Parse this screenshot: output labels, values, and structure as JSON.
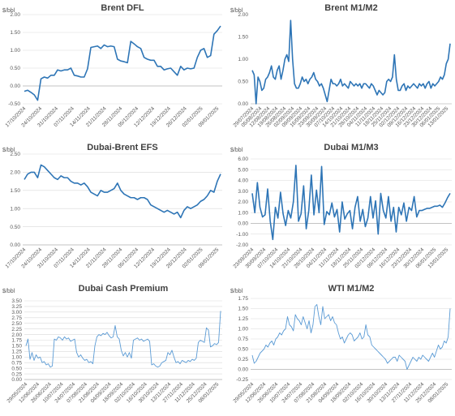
{
  "chart_data": [
    {
      "type": "line",
      "title": "Brent DFL",
      "unit": "$/bbl",
      "color": "#2e75b6",
      "ylim": [
        -0.5,
        2.0
      ],
      "yticks": [
        "-0.50",
        "0.00",
        "0.50",
        "1.00",
        "1.50",
        "2.00"
      ],
      "grid": true,
      "x_tick_labels": [
        "17/10/2024",
        "24/10/2024",
        "31/10/2024",
        "07/11/2024",
        "14/11/2024",
        "21/11/2024",
        "28/11/2024",
        "05/12/2024",
        "12/12/2024",
        "19/12/2024",
        "26/12/2024",
        "02/01/2025",
        "09/01/2025"
      ],
      "series": [
        {
          "values": [
            -0.15,
            -0.12,
            -0.18,
            -0.25,
            -0.4,
            0.2,
            0.25,
            0.22,
            0.3,
            0.3,
            0.45,
            0.42,
            0.45,
            0.45,
            0.5,
            0.3,
            0.28,
            0.25,
            0.25,
            0.48,
            1.08,
            1.1,
            1.12,
            1.05,
            1.15,
            1.1,
            1.12,
            1.1,
            0.75,
            0.7,
            0.68,
            0.65,
            1.25,
            1.18,
            1.1,
            1.05,
            0.8,
            0.75,
            0.72,
            0.72,
            0.55,
            0.55,
            0.45,
            0.48,
            0.5,
            0.4,
            0.3,
            0.55,
            0.45,
            0.5,
            0.48,
            0.5,
            0.8,
            1.0,
            1.05,
            0.8,
            0.85,
            1.45,
            1.55,
            1.68
          ]
        }
      ]
    },
    {
      "type": "line",
      "title": "Brent M1/M2",
      "unit": "$/bbl",
      "color": "#2e75b6",
      "ylim": [
        0,
        2.0
      ],
      "yticks": [
        "-0.50",
        "0.00",
        "0.50",
        "1.00",
        "1.50",
        "2.00"
      ],
      "grid": false,
      "x_tick_labels": [
        "29/07/2024",
        "05/08/2024",
        "12/08/2024",
        "19/08/2024",
        "26/08/2024",
        "02/09/2024",
        "09/09/2024",
        "16/09/2024",
        "23/09/2024",
        "30/09/2024",
        "07/10/2024",
        "14/10/2024",
        "21/10/2024",
        "28/10/2024",
        "04/11/2024",
        "11/11/2024",
        "18/11/2024",
        "25/11/2024",
        "02/12/2024",
        "09/12/2024",
        "16/12/2024",
        "23/12/2024",
        "30/12/2024",
        "06/01/2025",
        "13/01/2025"
      ],
      "series": [
        {
          "values": [
            0.75,
            0.65,
            -0.1,
            0.6,
            0.5,
            0.3,
            0.35,
            0.55,
            0.6,
            0.7,
            0.85,
            0.6,
            0.55,
            0.75,
            0.85,
            0.55,
            0.75,
            1.0,
            1.1,
            0.95,
            1.87,
            1.0,
            0.45,
            0.35,
            0.35,
            0.45,
            0.6,
            0.5,
            0.55,
            0.45,
            0.55,
            0.6,
            0.7,
            0.55,
            0.5,
            0.4,
            0.45,
            0.35,
            0.2,
            0.05,
            0.3,
            0.55,
            0.45,
            0.45,
            0.4,
            0.45,
            0.55,
            0.4,
            0.45,
            0.4,
            0.35,
            0.5,
            0.45,
            0.4,
            0.45,
            0.4,
            0.45,
            0.35,
            0.45,
            0.45,
            0.4,
            0.35,
            0.45,
            0.4,
            0.3,
            0.2,
            0.3,
            0.25,
            0.2,
            0.25,
            0.5,
            0.55,
            0.5,
            0.6,
            1.1,
            0.55,
            0.3,
            0.3,
            0.4,
            0.45,
            0.3,
            0.4,
            0.35,
            0.4,
            0.45,
            0.4,
            0.35,
            0.45,
            0.4,
            0.45,
            0.35,
            0.45,
            0.5,
            0.35,
            0.45,
            0.4,
            0.45,
            0.5,
            0.6,
            0.55,
            0.65,
            0.9,
            1.0,
            1.35
          ]
        }
      ]
    },
    {
      "type": "line",
      "title": "Dubai-Brent EFS",
      "unit": "$/bbl",
      "color": "#2e75b6",
      "ylim": [
        0,
        2.5
      ],
      "yticks": [
        "0.00",
        "0.50",
        "1.00",
        "1.50",
        "2.00",
        "2.50"
      ],
      "grid": true,
      "x_tick_labels": [
        "17/10/2024",
        "24/10/2024",
        "31/10/2024",
        "07/11/2024",
        "14/11/2024",
        "21/11/2024",
        "28/11/2024",
        "05/12/2024",
        "12/12/2024",
        "19/12/2024",
        "26/12/2024",
        "02/01/2025",
        "09/01/2025"
      ],
      "series": [
        {
          "values": [
            1.8,
            1.95,
            2.0,
            2.0,
            1.85,
            2.2,
            2.15,
            2.05,
            1.95,
            1.85,
            1.8,
            1.9,
            1.85,
            1.85,
            1.75,
            1.7,
            1.7,
            1.65,
            1.7,
            1.6,
            1.45,
            1.4,
            1.35,
            1.5,
            1.45,
            1.45,
            1.5,
            1.55,
            1.7,
            1.5,
            1.4,
            1.35,
            1.3,
            1.3,
            1.25,
            1.3,
            1.3,
            1.25,
            1.1,
            1.05,
            1.0,
            0.95,
            0.9,
            0.95,
            0.9,
            0.85,
            0.9,
            0.75,
            0.95,
            1.05,
            1.0,
            1.05,
            1.1,
            1.2,
            1.25,
            1.35,
            1.5,
            1.45,
            1.75,
            1.95
          ]
        }
      ]
    },
    {
      "type": "line",
      "title": "Dubai M1/M3",
      "unit": "$/bbl",
      "color": "#2e75b6",
      "ylim": [
        -2.0,
        6.0
      ],
      "yticks": [
        "-2.00",
        "-1.00",
        "0.00",
        "1.00",
        "2.00",
        "3.00",
        "4.00",
        "5.00",
        "6.00"
      ],
      "grid": true,
      "x_tick_labels": [
        "23/09/2024",
        "30/09/2024",
        "07/10/2024",
        "14/10/2024",
        "21/10/2024",
        "28/10/2024",
        "04/11/2024",
        "11/11/2024",
        "18/11/2024",
        "25/11/2024",
        "02/12/2024",
        "09/12/2024",
        "16/12/2024",
        "23/12/2024",
        "30/12/2024",
        "06/01/2025",
        "13/01/2025"
      ],
      "series": [
        {
          "values": [
            2.8,
            1.0,
            3.8,
            1.5,
            0.6,
            0.8,
            3.2,
            0.2,
            -1.5,
            1.5,
            0.5,
            2.9,
            0.9,
            -0.2,
            1.2,
            0.5,
            2.0,
            5.4,
            0.2,
            0.9,
            3.5,
            -0.5,
            1.2,
            4.5,
            0.8,
            3.1,
            1.0,
            5.3,
            -0.1,
            1.1,
            0.8,
            1.9,
            0.6,
            1.3,
            -0.8,
            2.0,
            0.4,
            0.9,
            1.2,
            -0.5,
            1.5,
            2.5,
            0.2,
            1.3,
            -0.3,
            0.5,
            2.5,
            0.5,
            2.1,
            -1.0,
            2.8,
            1.2,
            0.5,
            2.5,
            0.2,
            1.5,
            -0.8,
            1.5,
            0.8,
            1.9,
            0.2,
            1.5,
            1.2,
            2.5,
            0.6,
            1.2,
            1.2,
            1.3,
            1.4,
            1.4,
            1.5,
            1.6,
            1.6,
            1.7,
            1.5,
            1.9,
            2.4,
            2.8
          ]
        }
      ]
    },
    {
      "type": "line",
      "title": "Dubai Cash Premium",
      "unit": "$/bbl",
      "color": "#5b9bd5",
      "ylim": [
        0,
        3.5
      ],
      "yticks": [
        "0.00",
        "0.25",
        "0.50",
        "0.75",
        "1.00",
        "1.25",
        "1.50",
        "1.75",
        "2.00",
        "2.25",
        "2.50",
        "2.75",
        "3.00",
        "3.25",
        "3.50"
      ],
      "grid": true,
      "x_tick_labels": [
        "29/05/2024",
        "12/06/2024",
        "26/06/2024",
        "10/07/2024",
        "24/07/2024",
        "07/08/2024",
        "21/08/2024",
        "04/09/2024",
        "18/09/2024",
        "02/10/2024",
        "16/10/2024",
        "30/10/2024",
        "13/11/2024",
        "27/11/2024",
        "11/12/2024",
        "25/12/2024",
        "08/01/2025"
      ],
      "series": [
        {
          "values": [
            1.5,
            1.8,
            0.9,
            1.2,
            0.85,
            1.1,
            0.95,
            1.0,
            0.75,
            0.8,
            0.65,
            0.7,
            0.55,
            0.6,
            1.8,
            1.75,
            1.9,
            1.85,
            1.75,
            1.9,
            1.8,
            1.85,
            1.7,
            1.75,
            1.8,
            1.2,
            1.0,
            1.1,
            0.95,
            0.85,
            0.9,
            0.75,
            0.8,
            0.7,
            1.5,
            1.9,
            2.0,
            1.95,
            2.05,
            2.0,
            2.1,
            1.95,
            1.85,
            1.9,
            2.4,
            1.9,
            1.8,
            1.3,
            1.05,
            1.2,
            1.0,
            1.2,
            0.95,
            1.75,
            1.8,
            1.85,
            1.75,
            1.8,
            1.7,
            1.75,
            1.8,
            1.7,
            0.65,
            0.7,
            0.6,
            0.55,
            0.6,
            0.75,
            0.8,
            0.85,
            1.2,
            1.1,
            1.3,
            1.0,
            0.75,
            0.8,
            0.7,
            0.85,
            0.8,
            0.75,
            0.85,
            0.8,
            0.9,
            0.85,
            0.95,
            1.65,
            1.75,
            1.7,
            1.65,
            2.3,
            2.2,
            1.45,
            1.5,
            1.6,
            1.55,
            1.65,
            3.05
          ]
        }
      ]
    },
    {
      "type": "line",
      "title": "WTI M1/M2",
      "unit": "$/bbl",
      "color": "#5b9bd5",
      "ylim": [
        -0.25,
        1.75
      ],
      "yticks": [
        "-0.25",
        "0.00",
        "0.25",
        "0.50",
        "0.75",
        "1.00",
        "1.25",
        "1.50",
        "1.75"
      ],
      "grid": true,
      "x_tick_labels": [
        "29/05/2024",
        "12/06/2024",
        "26/06/2024",
        "10/07/2024",
        "24/07/2024",
        "07/08/2024",
        "21/08/2024",
        "04/09/2024",
        "18/09/2024",
        "02/10/2024",
        "16/10/2024",
        "30/10/2024",
        "13/11/2024",
        "27/11/2024",
        "11/12/2024",
        "25/12/2024",
        "08/01/2025"
      ],
      "series": [
        {
          "values": [
            0.35,
            0.15,
            0.2,
            0.3,
            0.4,
            0.45,
            0.5,
            0.6,
            0.55,
            0.65,
            0.7,
            0.6,
            0.75,
            0.8,
            0.9,
            0.85,
            0.95,
            1.0,
            1.3,
            1.1,
            1.05,
            0.95,
            1.35,
            1.25,
            1.2,
            1.1,
            1.3,
            1.15,
            1.0,
            1.2,
            0.9,
            1.1,
            1.55,
            1.6,
            1.3,
            1.1,
            1.55,
            1.25,
            1.3,
            1.35,
            1.2,
            1.3,
            1.15,
            1.1,
            0.9,
            0.75,
            0.8,
            0.65,
            0.75,
            0.85,
            0.9,
            0.85,
            0.7,
            0.75,
            0.8,
            0.9,
            0.75,
            0.8,
            1.1,
            0.85,
            0.8,
            0.6,
            0.55,
            0.5,
            0.45,
            0.4,
            0.35,
            0.3,
            0.25,
            0.15,
            0.2,
            0.25,
            0.3,
            0.3,
            0.2,
            0.35,
            0.3,
            0.25,
            0.2,
            0.0,
            0.1,
            0.2,
            0.3,
            0.25,
            0.2,
            0.3,
            0.25,
            0.35,
            0.3,
            0.25,
            0.2,
            0.3,
            0.4,
            0.3,
            0.45,
            0.6,
            0.5,
            0.55,
            0.7,
            0.65,
            0.8,
            1.5
          ]
        }
      ]
    }
  ]
}
